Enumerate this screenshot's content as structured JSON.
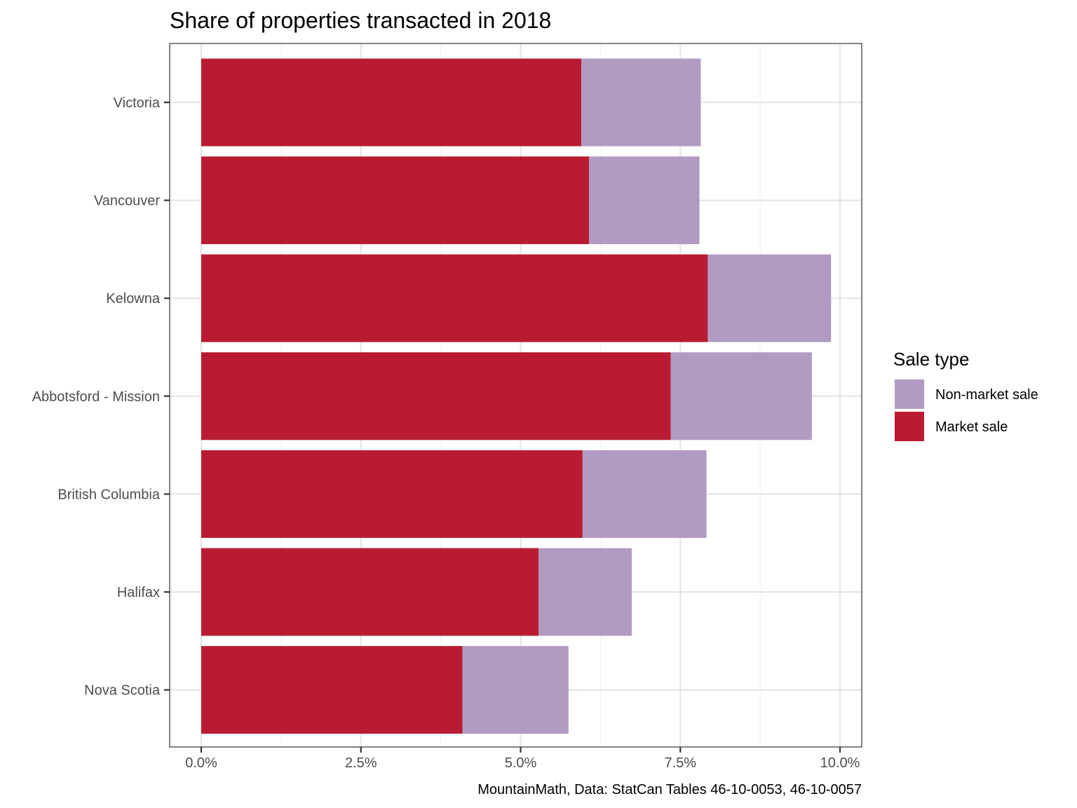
{
  "chart_data": {
    "type": "bar",
    "orientation": "horizontal",
    "stacked": true,
    "title": "Share of properties transacted in 2018",
    "xlabel": "",
    "ylabel": "",
    "xlim": [
      0,
      0.1
    ],
    "x_ticks": [
      0,
      0.025,
      0.05,
      0.075,
      0.1
    ],
    "x_tick_labels": [
      "0.0%",
      "2.5%",
      "5.0%",
      "7.5%",
      "10.0%"
    ],
    "categories": [
      "Victoria",
      "Vancouver",
      "Kelowna",
      "Abbotsford - Mission",
      "British Columbia",
      "Halifax",
      "Nova Scotia"
    ],
    "series": [
      {
        "name": "Market sale",
        "color": "#b91c32",
        "values": [
          0.0595,
          0.0607,
          0.0793,
          0.0735,
          0.0597,
          0.0528,
          0.0409
        ]
      },
      {
        "name": "Non-market sale",
        "color": "#b29bc3",
        "values": [
          0.0187,
          0.0173,
          0.0193,
          0.0221,
          0.0194,
          0.0146,
          0.0166
        ]
      }
    ],
    "legend": {
      "title": "Sale type",
      "position": "right",
      "entries": [
        {
          "label": "Non-market sale",
          "color": "#b29bc3"
        },
        {
          "label": "Market sale",
          "color": "#b91c32"
        }
      ]
    },
    "grid": true,
    "caption": "MountainMath, Data: StatCan Tables 46-10-0053, 46-10-0057"
  }
}
